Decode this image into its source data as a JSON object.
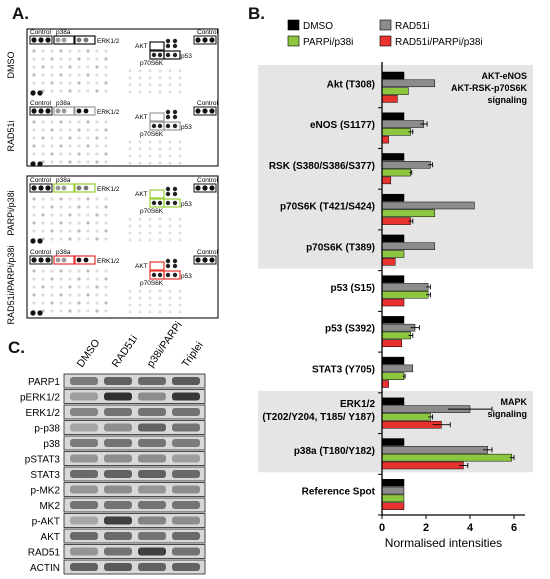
{
  "panels": {
    "a": "A.",
    "b": "B.",
    "c": "C."
  },
  "arrays": {
    "control_label": "Control",
    "p38a_label": "p38a",
    "erk_label": "ERK1/2",
    "akt_label": "AKT",
    "p53_label": "p53",
    "p70_label": "p70S6K",
    "conditions": [
      "DMSO",
      "RAD51i",
      "PARPi/p38i",
      "RAD51i/PARPi/p38i"
    ],
    "box_colors": [
      "#111111",
      "#999999",
      "#9acd32",
      "#e8322d"
    ]
  },
  "chart_data": {
    "type": "bar",
    "orientation": "horizontal",
    "xlabel": "Normalised intensities",
    "xlim": [
      0,
      6.5
    ],
    "xticks": [
      0,
      2,
      4,
      6
    ],
    "categories": [
      "Akt (T308)",
      "eNOS (S1177)",
      "RSK (S380/S386/S377)",
      "p70S6K (T421/S424)",
      "p70S6K (T389)",
      "p53 (S15)",
      "p53 (S392)",
      "STAT3 (Y705)",
      "ERK1/2 (T202/Y204, T185/ Y187)",
      "p38a (T180/Y182)",
      "Reference Spot"
    ],
    "series": [
      {
        "name": "DMSO",
        "color": "#000000",
        "values": [
          1,
          1,
          1,
          1,
          1,
          1,
          1,
          1,
          1,
          1,
          1
        ],
        "errors": [
          0,
          0,
          0,
          0,
          0,
          0,
          0,
          0,
          0,
          0,
          0
        ]
      },
      {
        "name": "RAD51i",
        "color": "#8c8c8c",
        "values": [
          2.4,
          1.9,
          2.2,
          4.2,
          2.4,
          2.1,
          1.5,
          1.4,
          4.0,
          4.8,
          1.0
        ],
        "errors": [
          0,
          0.15,
          0.1,
          0,
          0,
          0.1,
          0.2,
          0,
          1.0,
          0.2,
          0
        ]
      },
      {
        "name": "PARPi/p38i",
        "color": "#8dc63f",
        "values": [
          1.2,
          1.3,
          1.3,
          2.4,
          1.0,
          2.1,
          1.3,
          1.0,
          2.2,
          5.9,
          1.0
        ],
        "errors": [
          0,
          0.1,
          0.05,
          0,
          0,
          0.1,
          0.1,
          0.05,
          0.1,
          0.1,
          0
        ]
      },
      {
        "name": "RAD51i/PARPi/p38i",
        "color": "#e8322d",
        "values": [
          0.7,
          0.3,
          0.4,
          1.3,
          0.6,
          1.0,
          0.9,
          0.3,
          2.7,
          3.7,
          1.0
        ],
        "errors": [
          0,
          0,
          0,
          0.1,
          0,
          0,
          0,
          0,
          0.4,
          0.2,
          0
        ]
      }
    ],
    "shaded_groups": [
      {
        "label_lines": [
          "AKT-eNOS",
          "AKT-RSK-p70S6K",
          "signaling"
        ],
        "from": 0,
        "to": 4
      },
      {
        "label_lines": [
          "MAPK",
          "signaling"
        ],
        "from": 8,
        "to": 9
      }
    ],
    "legend": {
      "placement": "top",
      "columns": 2
    }
  },
  "blot": {
    "lanes": [
      "DMSO",
      "RAD51i",
      "p38i/PARPi",
      "Triplei"
    ],
    "rows": [
      {
        "label": "PARP1",
        "levels": [
          0.45,
          0.6,
          0.55,
          0.65
        ]
      },
      {
        "label": "pERK1/2",
        "levels": [
          0.25,
          0.9,
          0.35,
          0.85
        ]
      },
      {
        "label": "ERK1/2",
        "levels": [
          0.4,
          0.5,
          0.5,
          0.5
        ]
      },
      {
        "label": "p-p38",
        "levels": [
          0.2,
          0.35,
          0.6,
          0.5
        ]
      },
      {
        "label": "p38",
        "levels": [
          0.45,
          0.5,
          0.5,
          0.45
        ]
      },
      {
        "label": "pSTAT3",
        "levels": [
          0.3,
          0.35,
          0.35,
          0.25
        ]
      },
      {
        "label": "STAT3",
        "levels": [
          0.55,
          0.6,
          0.6,
          0.55
        ]
      },
      {
        "label": "p-MK2",
        "levels": [
          0.3,
          0.35,
          0.3,
          0.35
        ]
      },
      {
        "label": "MK2",
        "levels": [
          0.5,
          0.5,
          0.5,
          0.5
        ]
      },
      {
        "label": "p-AKT",
        "levels": [
          0.2,
          0.8,
          0.4,
          0.35
        ]
      },
      {
        "label": "AKT",
        "levels": [
          0.55,
          0.55,
          0.5,
          0.55
        ]
      },
      {
        "label": "RAD51",
        "levels": [
          0.3,
          0.5,
          0.8,
          0.5
        ]
      },
      {
        "label": "ACTIN",
        "levels": [
          0.6,
          0.65,
          0.6,
          0.6
        ]
      }
    ]
  }
}
